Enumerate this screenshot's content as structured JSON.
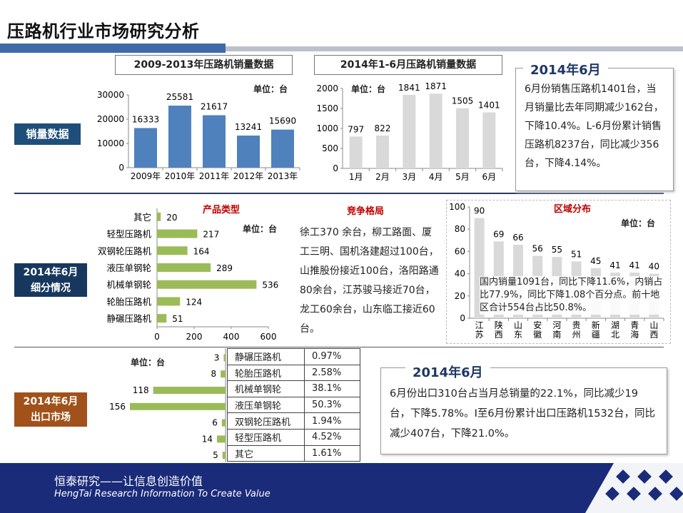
{
  "page": {
    "title": "压路机行业市场研究分析",
    "footer_cn": "恒泰研究——让信息创造价值",
    "footer_en": "HengTai Research Information To Create Value"
  },
  "tags": {
    "sales": "销量数据",
    "segment_line1": "2014年6月",
    "segment_line2": "细分情况",
    "export_line1": "2014年6月",
    "export_line2": "出口市场"
  },
  "headers": {
    "annual": "2009-2013年压路机销量数据",
    "monthly": "2014年1-6月压路机销量数据"
  },
  "units": {
    "u1": "单位：台",
    "u2": "单位：台",
    "u3": "单位：台",
    "u4": "单位：台",
    "u5": "单位：台"
  },
  "subtitles": {
    "product": "产品类型",
    "competition": "竞争格局",
    "region": "区域分布"
  },
  "box1": {
    "heading": "2014年6月",
    "text": "6月份销售压路机1401台，当月销量比去年同期减少162台，下降10.4%。L-6月份累计销售压路机8237台，同比减少356台，下降4.14%。"
  },
  "competition_text": "徐工370 余台，柳工路面、厦工三明、国机洛建超过100台，山推股份接近100台，洛阳路通80余台，江苏骏马接近70台，龙工60余台，山东临工接近60台。",
  "region_note": "国内销量1091台，同比下降11.6%，内销占比77.9%，同比下降1.08个百分点。前十地区合计554台占比50.8%。",
  "box2": {
    "heading": "2014年6月",
    "text": "6月份出口310台占当月总销量的22.1%，同比减少19台，下降5.78%。I至6月份累计出口压路机1532台，同比减少407台，下降21.0%。"
  },
  "export_table": [
    {
      "name": "静碾压路机",
      "share": "0.97%"
    },
    {
      "name": "轮胎压路机",
      "share": "2.58%"
    },
    {
      "name": "机械单钢轮",
      "share": "38.1%"
    },
    {
      "name": "液压单钢轮",
      "share": "50.3%"
    },
    {
      "name": "双钢轮压路机",
      "share": "1.94%"
    },
    {
      "name": "轻型压路机",
      "share": "4.52%"
    },
    {
      "name": "其它",
      "share": "1.61%"
    }
  ],
  "colors": {
    "blue_bar": "#4f81bd",
    "grey_bar": "#d9d9d9",
    "green_bar": "#9bbb59",
    "tag_blue": "#1f4e79",
    "tag_navy": "#17375e",
    "tag_brown": "#a0521a",
    "footer": "#1a2b7a"
  },
  "chart_data": [
    {
      "id": "annual",
      "type": "bar",
      "categories": [
        "2009年",
        "2010年",
        "2011年",
        "2012年",
        "2013年"
      ],
      "values": [
        16333,
        25581,
        21617,
        13241,
        15690
      ],
      "ylim": [
        0,
        30000
      ],
      "yticks": [
        0,
        10000,
        20000,
        30000
      ],
      "color": "#4f81bd"
    },
    {
      "id": "monthly",
      "type": "bar",
      "categories": [
        "1月",
        "2月",
        "3月",
        "4月",
        "5月",
        "6月"
      ],
      "values": [
        797,
        822,
        1841,
        1871,
        1505,
        1401
      ],
      "ylim": [
        0,
        2000
      ],
      "yticks": [
        0,
        500,
        1000,
        1500,
        2000
      ],
      "color": "#d9d9d9"
    },
    {
      "id": "product",
      "type": "bar",
      "orientation": "horizontal",
      "categories": [
        "其它",
        "轻型压路机",
        "双钢轮压路机",
        "液压单钢轮",
        "机械单钢轮",
        "轮胎压路机",
        "静碾压路机"
      ],
      "values": [
        20,
        217,
        164,
        289,
        536,
        124,
        51
      ],
      "xlim": [
        0,
        600
      ],
      "xticks": [
        0,
        200,
        400,
        600
      ],
      "color": "#9bbb59"
    },
    {
      "id": "region",
      "type": "bar",
      "categories": [
        "江苏",
        "陕西",
        "山东",
        "安徽",
        "河南",
        "贵州",
        "新疆",
        "湖北",
        "青海",
        "山西"
      ],
      "values": [
        90,
        69,
        66,
        56,
        55,
        51,
        45,
        41,
        41,
        40
      ],
      "ylim": [
        0,
        100
      ],
      "yticks": [
        0,
        20,
        40,
        60,
        80,
        100
      ],
      "color": "#d9d9d9"
    },
    {
      "id": "export",
      "type": "bar",
      "orientation": "horizontal",
      "categories": [
        "静碾压路机",
        "轮胎压路机",
        "机械单钢轮",
        "液压单钢轮",
        "双钢轮压路机",
        "轻型压路机",
        "其它"
      ],
      "values": [
        3,
        8,
        118,
        156,
        6,
        14,
        5
      ],
      "color": "#9bbb59"
    }
  ]
}
